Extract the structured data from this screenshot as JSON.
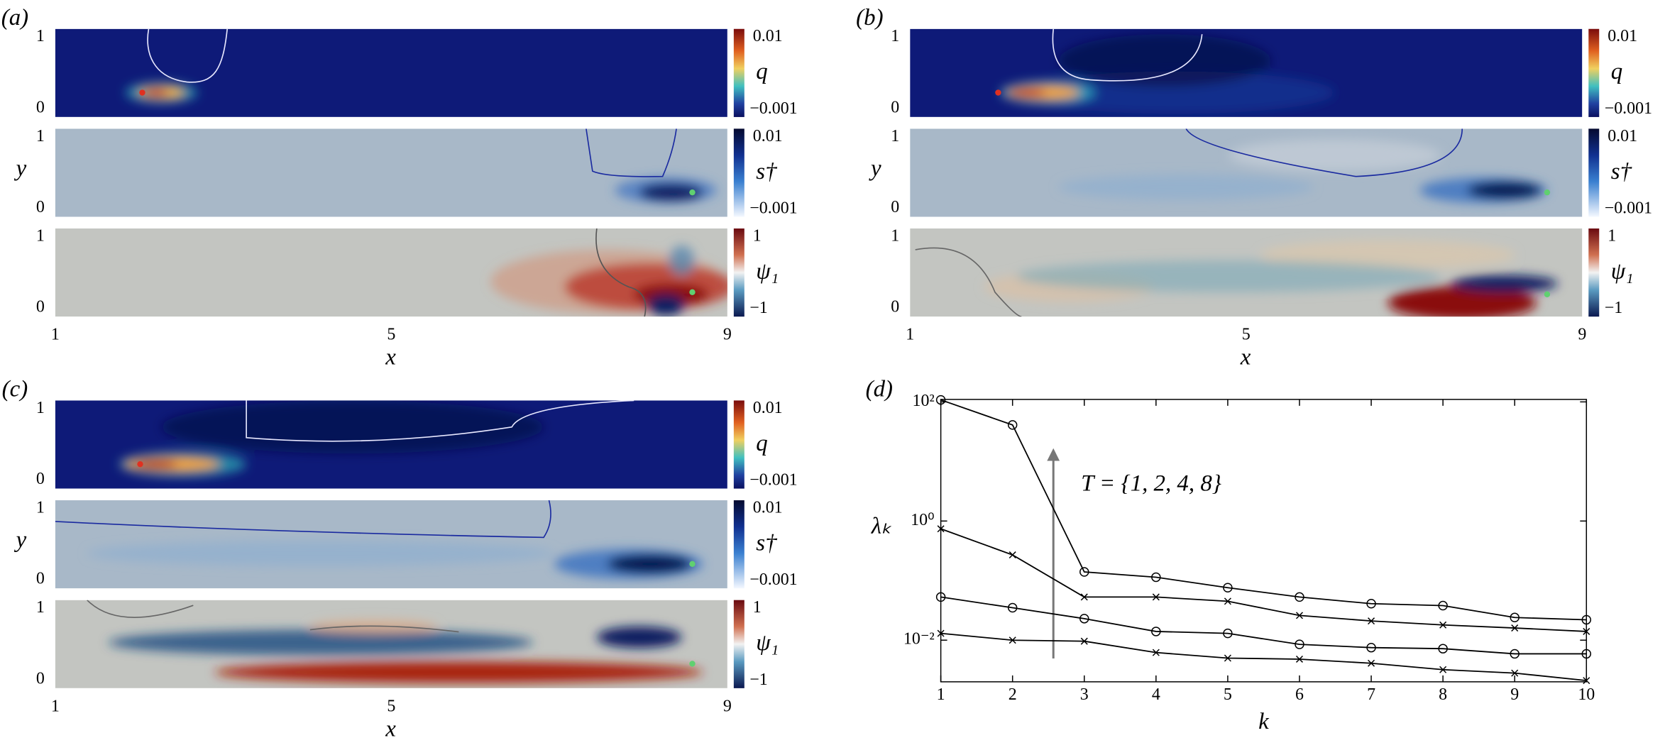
{
  "field_panels": [
    {
      "label": "(a)",
      "xlim": [
        1,
        9
      ],
      "xticks": [
        1,
        5,
        9
      ],
      "xlabel": "x",
      "ylabel": "y",
      "yticks": [
        0,
        1
      ],
      "rows": [
        {
          "colorbar_label": "q",
          "colorbar_ticks": [
            0.01,
            {
              "value": -0.001,
              "label": "−0.001"
            }
          ]
        },
        {
          "colorbar_label": "s†",
          "colorbar_ticks": [
            0.01,
            {
              "value": -0.001,
              "label": "−0.001"
            }
          ]
        },
        {
          "colorbar_label": "ψ₁",
          "colorbar_ticks": [
            1,
            {
              "value": -1,
              "label": "−1"
            }
          ]
        }
      ]
    },
    {
      "label": "(b)",
      "xlim": [
        1,
        9
      ],
      "xticks": [
        1,
        5,
        9
      ],
      "xlabel": "x",
      "ylabel": "y",
      "yticks": [
        0,
        1
      ],
      "rows": [
        {
          "colorbar_label": "q",
          "colorbar_ticks": [
            0.01,
            {
              "value": -0.001,
              "label": "−0.001"
            }
          ]
        },
        {
          "colorbar_label": "s†",
          "colorbar_ticks": [
            0.01,
            {
              "value": -0.001,
              "label": "−0.001"
            }
          ]
        },
        {
          "colorbar_label": "ψ₁",
          "colorbar_ticks": [
            1,
            {
              "value": -1,
              "label": "−1"
            }
          ]
        }
      ]
    },
    {
      "label": "(c)",
      "xlim": [
        1,
        9
      ],
      "xticks": [
        1,
        5,
        9
      ],
      "xlabel": "x",
      "ylabel": "y",
      "yticks": [
        0,
        1
      ],
      "rows": [
        {
          "colorbar_label": "q",
          "colorbar_ticks": [
            0.01,
            {
              "value": -0.001,
              "label": "−0.001"
            }
          ]
        },
        {
          "colorbar_label": "s†",
          "colorbar_ticks": [
            0.01,
            {
              "value": -0.001,
              "label": "−0.001"
            }
          ]
        },
        {
          "colorbar_label": "ψ₁",
          "colorbar_ticks": [
            1,
            {
              "value": -1,
              "label": "−1"
            }
          ]
        }
      ]
    }
  ],
  "chart_data": {
    "type": "line",
    "label": "(d)",
    "xlabel": "k",
    "ylabel": "λₖ",
    "annotation": "T = {1, 2, 4, 8}",
    "log_y": true,
    "x": [
      1,
      2,
      3,
      4,
      5,
      6,
      7,
      8,
      9,
      10
    ],
    "xlim": [
      1,
      10
    ],
    "xticks": [
      1,
      2,
      3,
      4,
      5,
      6,
      7,
      8,
      9,
      10
    ],
    "ylim": [
      0.002,
      110
    ],
    "yticks": [
      {
        "value": 0.01,
        "label": "10⁻²"
      },
      {
        "value": 1,
        "label": "10⁰"
      },
      {
        "value": 100,
        "label": "10²"
      }
    ],
    "series": [
      {
        "color": "#000000",
        "marker": "o",
        "values": [
          108,
          41,
          0.14,
          0.114,
          0.076,
          0.053,
          0.041,
          0.038,
          0.024,
          0.022
        ]
      },
      {
        "color": "#000000",
        "marker": "x",
        "values": [
          0.74,
          0.27,
          0.053,
          0.053,
          0.045,
          0.026,
          0.021,
          0.018,
          0.016,
          0.014
        ]
      },
      {
        "color": "#000000",
        "marker": "o",
        "values": [
          0.053,
          0.035,
          0.023,
          0.014,
          0.013,
          0.0085,
          0.0075,
          0.0072,
          0.0059,
          0.0059
        ]
      },
      {
        "color": "#000000",
        "marker": "x",
        "values": [
          0.013,
          0.01,
          0.0096,
          0.0062,
          0.005,
          0.0048,
          0.0041,
          0.0032,
          0.0028,
          0.0021
        ]
      }
    ]
  }
}
